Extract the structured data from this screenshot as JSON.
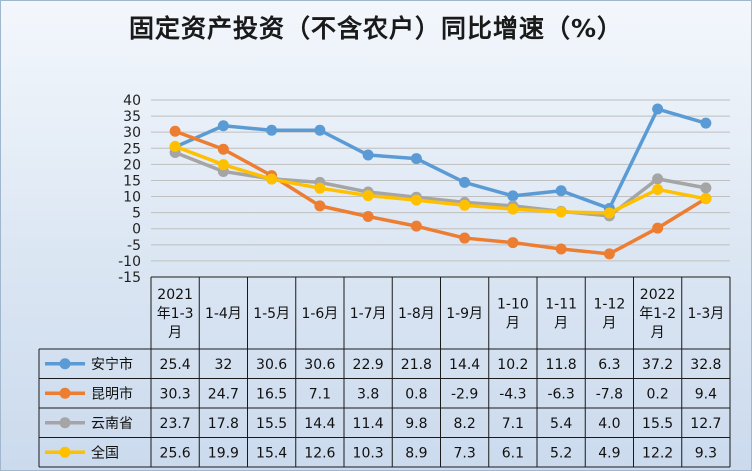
{
  "chart_data": {
    "type": "line",
    "title": "固定资产投资（不含农户）同比增速（%）",
    "categories": [
      [
        "2021",
        "年1-3",
        "月"
      ],
      [
        "1-4月"
      ],
      [
        "1-5月"
      ],
      [
        "1-6月"
      ],
      [
        "1-7月"
      ],
      [
        "1-8月"
      ],
      [
        "1-9月"
      ],
      [
        "1-10",
        "月"
      ],
      [
        "1-11",
        "月"
      ],
      [
        "1-12",
        "月"
      ],
      [
        "2022",
        "年1-2",
        "月"
      ],
      [
        "1-3月"
      ]
    ],
    "ylim": [
      -15,
      40
    ],
    "yticks": [
      40,
      35,
      30,
      25,
      20,
      15,
      10,
      5,
      0,
      -5,
      -10,
      -15
    ],
    "grid": true,
    "legend": "table",
    "series": [
      {
        "name": "安宁市",
        "color": "#5b9bd5",
        "values": [
          25.4,
          32,
          30.6,
          30.6,
          22.9,
          21.8,
          14.4,
          10.2,
          11.8,
          6.3,
          37.2,
          32.8
        ],
        "labels": [
          "25.4",
          "32",
          "30.6",
          "30.6",
          "22.9",
          "21.8",
          "14.4",
          "10.2",
          "11.8",
          "6.3",
          "37.2",
          "32.8"
        ]
      },
      {
        "name": "昆明市",
        "color": "#ed7d31",
        "values": [
          30.3,
          24.7,
          16.5,
          7.1,
          3.8,
          0.8,
          -2.9,
          -4.3,
          -6.3,
          -7.8,
          0.2,
          9.4
        ],
        "labels": [
          "30.3",
          "24.7",
          "16.5",
          "7.1",
          "3.8",
          "0.8",
          "-2.9",
          "-4.3",
          "-6.3",
          "-7.8",
          "0.2",
          "9.4"
        ]
      },
      {
        "name": "云南省",
        "color": "#a5a5a5",
        "values": [
          23.7,
          17.8,
          15.5,
          14.4,
          11.4,
          9.8,
          8.2,
          7.1,
          5.4,
          4.0,
          15.5,
          12.7
        ],
        "labels": [
          "23.7",
          "17.8",
          "15.5",
          "14.4",
          "11.4",
          "9.8",
          "8.2",
          "7.1",
          "5.4",
          "4.0",
          "15.5",
          "12.7"
        ]
      },
      {
        "name": "全国",
        "color": "#ffc000",
        "values": [
          25.6,
          19.9,
          15.4,
          12.6,
          10.3,
          8.9,
          7.3,
          6.1,
          5.2,
          4.9,
          12.2,
          9.3
        ],
        "labels": [
          "25.6",
          "19.9",
          "15.4",
          "12.6",
          "10.3",
          "8.9",
          "7.3",
          "6.1",
          "5.2",
          "4.9",
          "12.2",
          "9.3"
        ]
      }
    ]
  }
}
